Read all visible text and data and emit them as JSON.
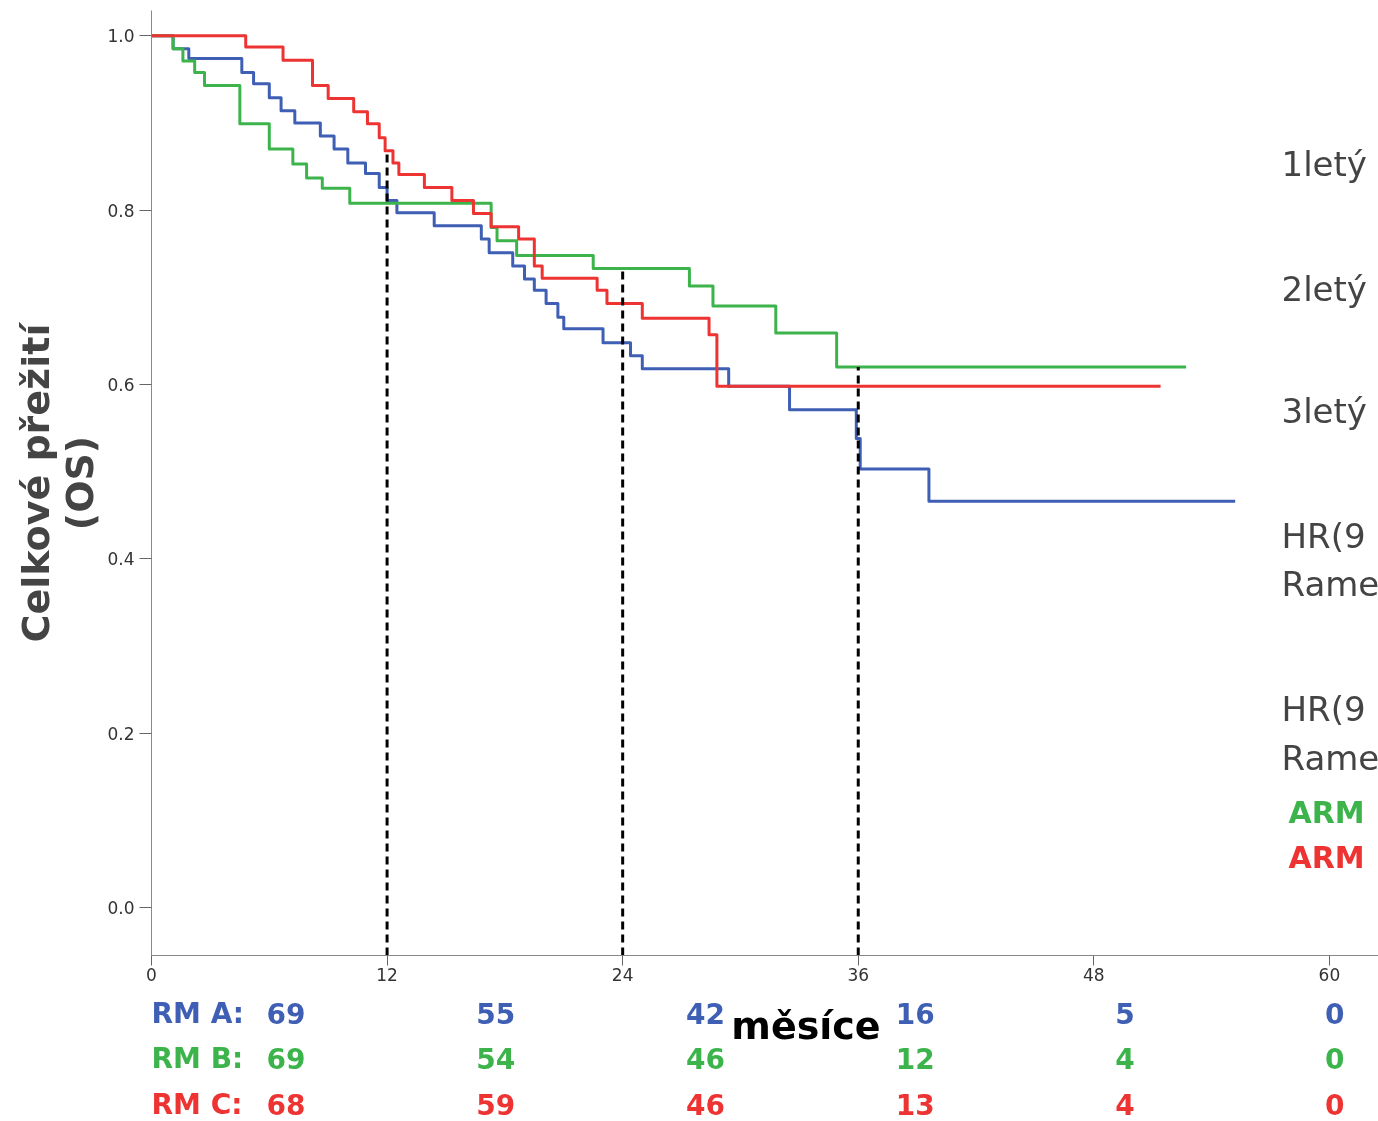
{
  "chart_data": {
    "type": "step",
    "ylabel": "Celkové přežití (OS)",
    "xlabel": "měsíce",
    "xlim": [
      0,
      62.5
    ],
    "ylim": [
      -0.055,
      1.029
    ],
    "xticks": [
      0,
      12,
      24,
      36,
      48,
      60
    ],
    "yticks": [
      {
        "value": 0,
        "label": "0.0"
      },
      {
        "value": 0.2,
        "label": "0.2"
      },
      {
        "value": 0.4,
        "label": "0.4"
      },
      {
        "value": 0.6,
        "label": "0.6"
      },
      {
        "value": 0.8,
        "label": "0.8"
      },
      {
        "value": 1,
        "label": "1.0"
      }
    ],
    "grid": false,
    "line_style": "solid",
    "marker": "none",
    "series": [
      {
        "color": "#3f5fb5",
        "x": [
          0,
          1.1,
          1.9,
          4.6,
          5.2,
          6.0,
          6.6,
          7.3,
          8.6,
          9.3,
          10.0,
          10.9,
          11.6,
          12.0,
          12.5,
          14.4,
          16.8,
          17.2,
          18.4,
          19.0,
          19.5,
          20.1,
          20.7,
          21.0,
          23.0,
          24.4,
          25.0,
          29.4,
          32.5,
          35.9,
          36.1,
          39.6,
          55.2
        ],
        "values": [
          1.0,
          0.985,
          0.974,
          0.958,
          0.945,
          0.929,
          0.914,
          0.9,
          0.885,
          0.87,
          0.854,
          0.842,
          0.826,
          0.811,
          0.797,
          0.782,
          0.767,
          0.751,
          0.736,
          0.721,
          0.708,
          0.693,
          0.677,
          0.664,
          0.648,
          0.633,
          0.618,
          0.598,
          0.571,
          0.538,
          0.503,
          0.466,
          0.466
        ]
      },
      {
        "color": "#3cb44b",
        "x": [
          0,
          1.1,
          1.6,
          2.2,
          2.7,
          4.5,
          6.0,
          7.2,
          7.9,
          8.7,
          10.1,
          17.3,
          17.6,
          18.6,
          22.5,
          27.4,
          28.6,
          31.8,
          34.9,
          52.7
        ],
        "values": [
          1.0,
          0.985,
          0.971,
          0.958,
          0.943,
          0.899,
          0.87,
          0.853,
          0.837,
          0.825,
          0.808,
          0.78,
          0.765,
          0.748,
          0.733,
          0.713,
          0.69,
          0.659,
          0.62,
          0.62
        ]
      },
      {
        "color": "#ee3333",
        "x": [
          0,
          4.8,
          6.7,
          8.2,
          9.0,
          10.3,
          11.0,
          11.6,
          11.9,
          12.3,
          12.6,
          13.9,
          15.3,
          16.4,
          17.3,
          18.7,
          19.5,
          19.9,
          22.7,
          23.2,
          25.0,
          28.4,
          28.8,
          51.4
        ],
        "values": [
          1.0,
          0.987,
          0.972,
          0.943,
          0.928,
          0.913,
          0.899,
          0.883,
          0.868,
          0.854,
          0.841,
          0.826,
          0.811,
          0.796,
          0.781,
          0.767,
          0.736,
          0.722,
          0.708,
          0.693,
          0.676,
          0.657,
          0.598,
          0.598
        ]
      }
    ],
    "ref_lines": [
      {
        "axis": "x",
        "value": 12,
        "color": "#000000",
        "line_style": "dashed"
      },
      {
        "axis": "x",
        "value": 24,
        "color": "#000000",
        "line_style": "dashed"
      },
      {
        "axis": "x",
        "value": 36,
        "color": "#000000",
        "line_style": "dashed"
      }
    ],
    "annotations": [
      "RM A:",
      "69",
      "55",
      "42",
      "16",
      "5",
      "0",
      "RM B:",
      "69",
      "54",
      "46",
      "12",
      "4",
      "0",
      "RM C:",
      "68",
      "59",
      "46",
      "13",
      "4",
      "0",
      "1letý",
      "2letý",
      "3letý",
      "HR(9",
      "Rame",
      "HR(9",
      "Rame",
      "ARM",
      "ARM"
    ]
  }
}
